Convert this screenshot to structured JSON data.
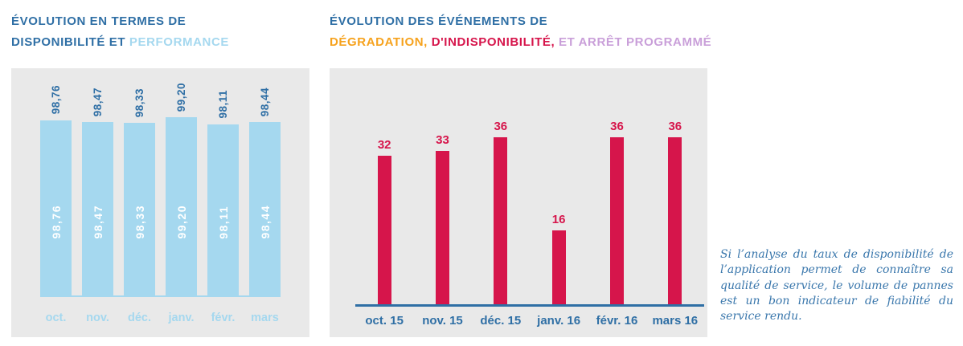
{
  "colors": {
    "dark_blue": "#2f6fa5",
    "light_blue": "#a5d8ef",
    "red": "#d6154b",
    "orange": "#f6a21d",
    "lavender": "#c99fd9",
    "panel_gray": "#e9e9e9",
    "note_blue": "#3a77ac"
  },
  "left_chart": {
    "title_line1": "ÉVOLUTION EN TERMES DE",
    "title_dark": "DISPONIBILITÉ ET",
    "title_light": "PERFORMANCE"
  },
  "right_chart": {
    "title_line1": "ÉVOLUTION DES ÉVÉNEMENTS DE",
    "title_orange": "DÉGRADATION,",
    "title_red": "D'INDISPONIBILITÉ,",
    "title_purple": "ET ARRÊT PROGRAMMÉ"
  },
  "note": {
    "text": "Si l’analyse du taux de disponibilité de l’application permet de connaître sa qualité de service, le volume de pannes est un bon indicateur de fiabilité du service rendu."
  },
  "chart_data": [
    {
      "type": "bar",
      "title": "ÉVOLUTION EN TERMES DE DISPONIBILITÉ ET PERFORMANCE",
      "categories": [
        "oct.",
        "nov.",
        "déc.",
        "janv.",
        "févr.",
        "mars"
      ],
      "values": [
        98.76,
        98.47,
        98.33,
        99.2,
        98.11,
        98.44
      ],
      "value_labels": [
        "98,76",
        "98,47",
        "98,33",
        "99,20",
        "98,11",
        "98,44"
      ],
      "bar_color": "#a5d8ef",
      "value_label_color_above": "#2f6fa5",
      "value_label_color_inside": "#ffffff",
      "ylim": [
        0,
        100
      ],
      "grid": false,
      "legend": "none"
    },
    {
      "type": "bar",
      "title": "ÉVOLUTION DES ÉVÉNEMENTS DE DÉGRADATION, D'INDISPONIBILITÉ, ET ARRÊT PROGRAMMÉ",
      "categories": [
        "oct. 15",
        "nov. 15",
        "déc. 15",
        "janv. 16",
        "févr. 16",
        "mars 16"
      ],
      "values": [
        32,
        33,
        36,
        16,
        36,
        36
      ],
      "bar_color": "#d6154b",
      "value_label_color": "#d6154b",
      "ylim": [
        0,
        40
      ],
      "grid": false,
      "legend": "none"
    }
  ]
}
